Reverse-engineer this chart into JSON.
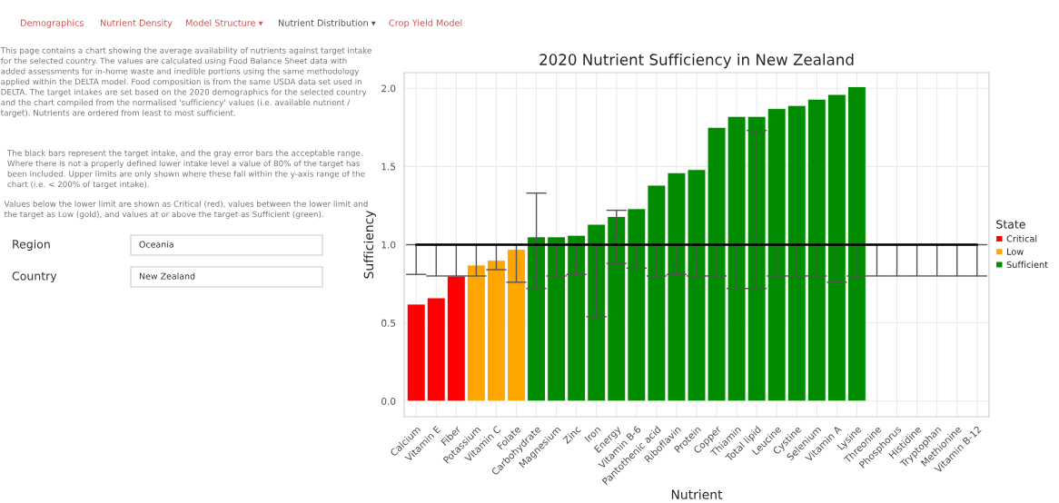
{
  "chart_data": {
    "type": "bar",
    "title": "2020 Nutrient Sufficiency in New Zealand",
    "xlabel": "Nutrient",
    "ylabel": "Sufficiency",
    "legend_title": "State",
    "legend": "right",
    "grid": true,
    "categories": [
      "Calcium",
      "Vitamin E",
      "Fiber",
      "Potassium",
      "Vitamin C",
      "Folate",
      "Carbohydrate",
      "Magnesium",
      "Zinc",
      "Iron",
      "Energy",
      "Vitamin B-6",
      "Pantothenic acid",
      "Riboflavin",
      "Protein",
      "Copper",
      "Thiamin",
      "Total lipid",
      "Leucine",
      "Cystine",
      "Selenium",
      "Vitamin A",
      "Lysine",
      "Threonine",
      "Phosphorus",
      "Histidine",
      "Tryptophan",
      "Methionine",
      "Vitamin B-12"
    ],
    "series": [
      {
        "name": "Critical",
        "color": "#ff0000",
        "values": [
          0.62,
          0.66,
          0.8,
          null,
          null,
          null,
          null,
          null,
          null,
          null,
          null,
          null,
          null,
          null,
          null,
          null,
          null,
          null,
          null,
          null,
          null,
          null,
          null,
          null,
          null,
          null,
          null,
          null,
          null
        ]
      },
      {
        "name": "Low",
        "color": "#ffa500",
        "values": [
          null,
          null,
          null,
          0.87,
          0.9,
          0.97,
          null,
          null,
          null,
          null,
          null,
          null,
          null,
          null,
          null,
          null,
          null,
          null,
          null,
          null,
          null,
          null,
          null,
          null,
          null,
          null,
          null,
          null,
          null
        ]
      },
      {
        "name": "Sufficient",
        "color": "#008b00",
        "values": [
          null,
          null,
          null,
          null,
          null,
          null,
          1.05,
          1.05,
          1.06,
          1.13,
          1.18,
          1.23,
          1.38,
          1.46,
          1.48,
          1.75,
          1.82,
          1.82,
          1.87,
          1.89,
          1.93,
          1.96,
          2.01,
          null,
          null,
          null,
          null,
          null,
          null
        ]
      },
      {
        "type": "line",
        "color": "#000000",
        "values": [
          1.0,
          1.0,
          1.0,
          1.0,
          1.0,
          1.0,
          1.0,
          1.0,
          1.0,
          1.0,
          1.0,
          1.0,
          1.0,
          1.0,
          1.0,
          1.0,
          1.0,
          1.0,
          1.0,
          1.0,
          1.0,
          1.0,
          1.0,
          1.0,
          1.0,
          1.0,
          1.0,
          1.0,
          1.0
        ],
        "errors": [
          [
            0.81,
            1.0
          ],
          [
            0.8,
            1.0
          ],
          [
            0.8,
            1.0
          ],
          [
            0.8,
            1.0
          ],
          [
            0.84,
            1.0
          ],
          [
            0.76,
            1.0
          ],
          [
            0.72,
            1.33
          ],
          [
            0.8,
            1.0
          ],
          [
            0.81,
            1.0
          ],
          [
            0.54,
            1.0
          ],
          [
            0.88,
            1.22
          ],
          [
            0.85,
            1.0
          ],
          [
            0.8,
            1.0
          ],
          [
            0.81,
            1.0
          ],
          [
            0.8,
            1.0
          ],
          [
            0.8,
            1.0
          ],
          [
            0.72,
            1.0
          ],
          [
            0.72,
            1.73
          ],
          [
            0.8,
            1.0
          ],
          [
            0.8,
            1.0
          ],
          [
            0.8,
            1.0
          ],
          [
            0.76,
            1.0
          ],
          [
            0.8,
            1.0
          ],
          [
            0.8,
            1.0
          ],
          [
            0.8,
            1.0
          ],
          [
            0.8,
            1.0
          ],
          [
            0.8,
            1.0
          ],
          [
            0.8,
            1.0
          ],
          [
            0.8,
            1.0
          ]
        ]
      }
    ],
    "ylim": [
      -0.1,
      2.1
    ],
    "yticks": [
      {
        "value": 0,
        "label": "0.0"
      },
      {
        "value": 0.5,
        "label": "0.5"
      },
      {
        "value": 1,
        "label": "1.0"
      },
      {
        "value": 1.5,
        "label": "1.5"
      },
      {
        "value": 2,
        "label": "2.0"
      }
    ],
    "annotations": [
      "Demographics",
      "Nutrient Density",
      "Model Structure ▾",
      "Nutrient Distribution ▾",
      "Crop Yield Model",
      "This page contains a chart showing the average availability of nutrients against target intake for the selected country. The values are calculated using Food Balance Sheet data with added assessments for in-home waste and inedible portions using the same methodology applied within the DELTA model. Food composition is from the same USDA data set used in DELTA. The target intakes are set based on the 2020 demographics for the selected country and the chart compiled from the normalised 'sufficiency' values (i.e. available nutrient / target). Nutrients are ordered from least to most sufficient.",
      "The black bars represent the target intake, and the gray error bars the acceptable range. Where there is not a properly defined lower intake level a value of 80% of the target has been included. Upper limits are only shown where these fall within the y-axis range of the chart (i.e. < 200% of target intake).",
      "Values below the lower limit are shown as Critical (red), values between the lower limit and the target as Low (gold), and values at or above the target as Sufficient (green).",
      "Region",
      "Oceania",
      "Country",
      "New Zealand"
    ]
  }
}
